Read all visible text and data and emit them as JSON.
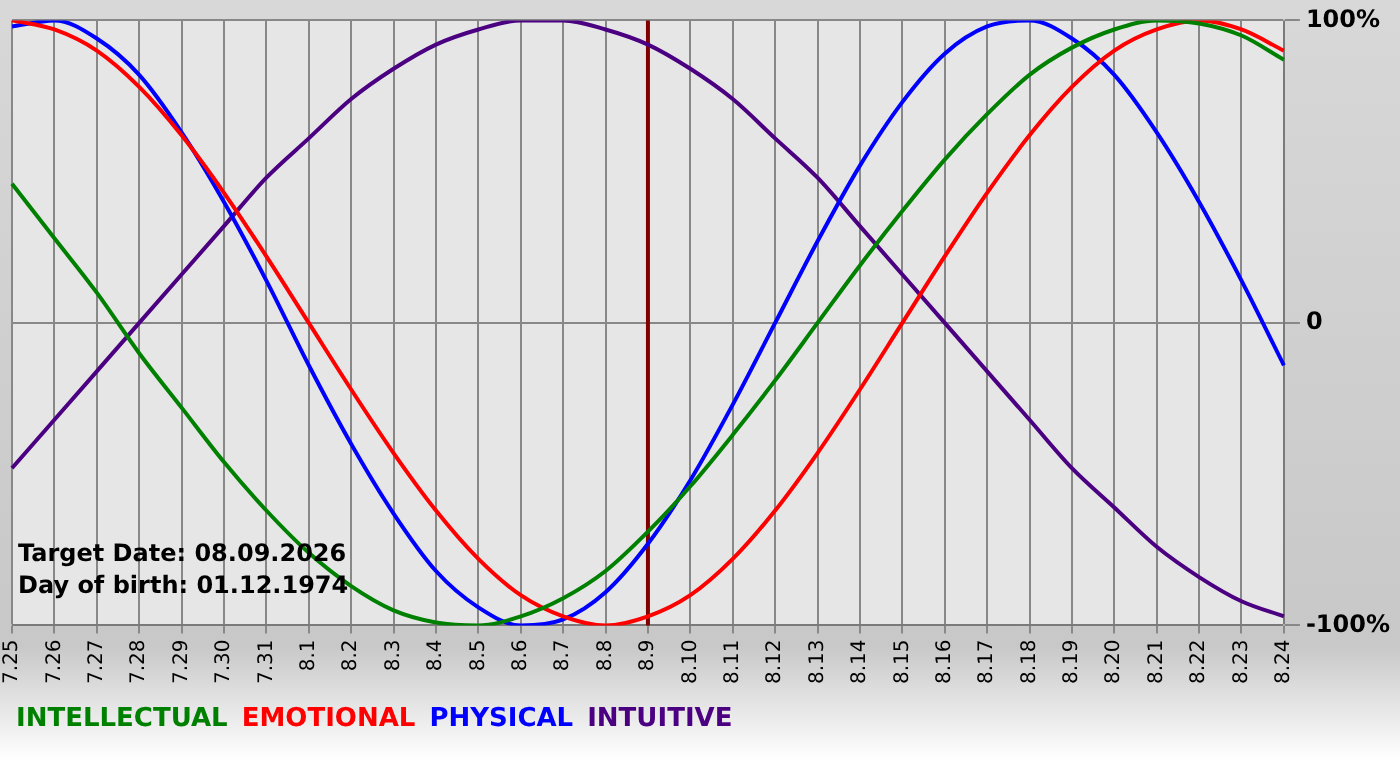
{
  "chart_data": {
    "type": "line",
    "categories": [
      "7.25",
      "7.26",
      "7.27",
      "7.28",
      "7.29",
      "7.30",
      "7.31",
      "8.1",
      "8.2",
      "8.3",
      "8.4",
      "8.5",
      "8.6",
      "8.7",
      "8.8",
      "8.9",
      "8.10",
      "8.11",
      "8.12",
      "8.13",
      "8.14",
      "8.15",
      "8.16",
      "8.17",
      "8.18",
      "8.19",
      "8.20",
      "8.21",
      "8.22",
      "8.23",
      "8.24"
    ],
    "series": [
      {
        "name": "INTELLECTUAL",
        "color": "#008000",
        "values": [
          46,
          28,
          10,
          -10,
          -28,
          -46,
          -62,
          -76,
          -87,
          -95,
          -99,
          -100,
          -97,
          -91,
          -82,
          -69,
          -54,
          -37,
          -19,
          0,
          19,
          37,
          54,
          69,
          82,
          91,
          97,
          100,
          99,
          95,
          87
        ]
      },
      {
        "name": "EMOTIONAL",
        "color": "#ff0000",
        "values": [
          100,
          97,
          90,
          78,
          62,
          43,
          22,
          0,
          -22,
          -43,
          -62,
          -78,
          -90,
          -97,
          -100,
          -97,
          -90,
          -78,
          -62,
          -43,
          -22,
          0,
          22,
          43,
          62,
          78,
          90,
          97,
          100,
          97,
          90
        ]
      },
      {
        "name": "PHYSICAL",
        "color": "#0000ff",
        "values": [
          98,
          100,
          94,
          82,
          63,
          40,
          14,
          -14,
          -40,
          -63,
          -82,
          -94,
          -100,
          -98,
          -89,
          -73,
          -52,
          -27,
          0,
          27,
          52,
          73,
          89,
          98,
          100,
          94,
          82,
          63,
          40,
          14,
          -14
        ]
      },
      {
        "name": "INTUITIVE",
        "color": "#4b0082",
        "values": [
          -48,
          -32,
          -16,
          0,
          16,
          32,
          48,
          61,
          74,
          84,
          92,
          97,
          100,
          100,
          97,
          92,
          84,
          74,
          61,
          48,
          32,
          16,
          0,
          -16,
          -32,
          -48,
          -61,
          -74,
          -84,
          -92,
          -97
        ]
      }
    ],
    "ylim": [
      -100,
      100
    ],
    "yticks": [
      {
        "value": -100,
        "label": "-100%"
      },
      0,
      {
        "value": 100,
        "label": "100%"
      }
    ],
    "ref_lines": [
      {
        "axis": "x",
        "value": "8.9",
        "color": "#800000"
      }
    ],
    "annotations": [
      "Target Date: 08.09.2026",
      "Day of birth: 01.12.1974"
    ],
    "grid": true,
    "legend": "bottom",
    "marker": "none",
    "line_style": "solid"
  }
}
